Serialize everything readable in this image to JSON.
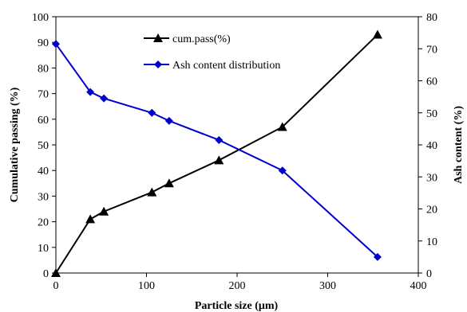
{
  "chart_data": {
    "type": "line",
    "xlabel": "Particle size (μm)",
    "ylabel_left": "Cumulative passing (%)",
    "ylabel_right": "Ash content (%)",
    "xlim": [
      0,
      400
    ],
    "ylim_left": [
      0,
      100
    ],
    "ylim_right": [
      0,
      80
    ],
    "x_ticks": [
      0,
      100,
      200,
      300,
      400
    ],
    "y_left_ticks": [
      0,
      10,
      20,
      30,
      40,
      50,
      60,
      70,
      80,
      90,
      100
    ],
    "y_right_ticks": [
      0,
      10,
      20,
      30,
      40,
      50,
      60,
      70,
      80
    ],
    "grid": false,
    "legend_position": "top-center",
    "series": [
      {
        "name": "cum.pass(%)",
        "axis": "left",
        "color": "#000000",
        "marker": "triangle",
        "x": [
          0,
          38,
          53,
          106,
          125,
          180,
          250,
          355
        ],
        "y": [
          0,
          21,
          24,
          31.5,
          35,
          44,
          57,
          93
        ]
      },
      {
        "name": "Ash content distribution",
        "axis": "right",
        "color": "#0000cc",
        "marker": "diamond",
        "x": [
          0,
          38,
          53,
          106,
          125,
          180,
          250,
          355
        ],
        "y": [
          71.5,
          56.5,
          54.5,
          50,
          47.5,
          41.5,
          32,
          5
        ]
      }
    ]
  }
}
